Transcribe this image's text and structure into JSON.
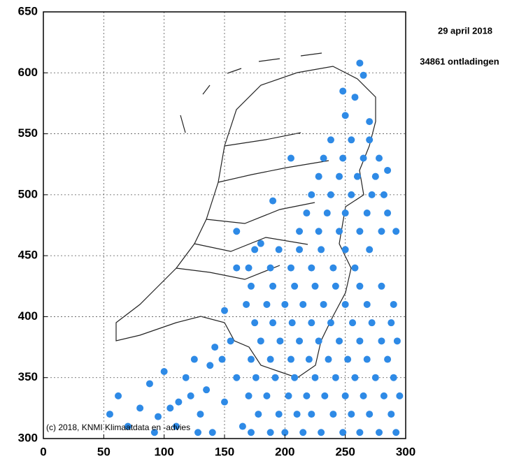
{
  "chart_data": {
    "type": "scatter",
    "title": "29 april 2018",
    "subtitle": "34861 ontladingen",
    "annotation": "(c) 2018, KNMI Klimaatdata en -advies",
    "xlim": [
      0,
      300
    ],
    "ylim": [
      300,
      650
    ],
    "xticks": [
      0,
      50,
      100,
      150,
      200,
      250,
      300
    ],
    "yticks": [
      300,
      350,
      400,
      450,
      500,
      550,
      600,
      650
    ],
    "grid": true,
    "color": "#2e8ae6",
    "x": [
      55,
      62,
      70,
      80,
      88,
      95,
      100,
      92,
      110,
      112,
      118,
      125,
      130,
      135,
      140,
      128,
      142,
      122,
      105,
      138,
      150,
      155,
      160,
      165,
      150,
      160,
      148,
      172,
      188,
      200,
      215,
      230,
      248,
      262,
      278,
      292,
      178,
      195,
      210,
      222,
      240,
      255,
      270,
      288,
      170,
      185,
      203,
      218,
      233,
      250,
      265,
      282,
      295,
      176,
      192,
      208,
      225,
      242,
      258,
      275,
      290,
      172,
      188,
      205,
      220,
      236,
      252,
      268,
      285,
      180,
      196,
      212,
      228,
      245,
      262,
      280,
      293,
      175,
      190,
      206,
      222,
      238,
      256,
      272,
      288,
      168,
      185,
      200,
      215,
      232,
      250,
      268,
      290,
      172,
      190,
      208,
      225,
      242,
      262,
      280,
      170,
      188,
      205,
      222,
      240,
      258,
      175,
      195,
      212,
      230,
      250,
      270,
      212,
      228,
      245,
      262,
      280,
      218,
      235,
      250,
      268,
      285,
      222,
      238,
      255,
      272,
      282,
      228,
      245,
      260,
      275,
      232,
      248,
      265,
      278,
      238,
      255,
      270,
      250,
      258,
      265,
      262,
      248,
      270,
      285,
      292,
      205,
      190,
      180,
      160
    ],
    "values": [
      320,
      335,
      310,
      325,
      345,
      318,
      355,
      305,
      310,
      330,
      350,
      365,
      320,
      340,
      305,
      305,
      375,
      335,
      325,
      360,
      330,
      380,
      350,
      310,
      405,
      440,
      365,
      305,
      305,
      305,
      305,
      305,
      305,
      305,
      305,
      305,
      320,
      320,
      320,
      320,
      320,
      320,
      320,
      320,
      335,
      335,
      335,
      335,
      335,
      335,
      335,
      335,
      335,
      350,
      350,
      350,
      350,
      350,
      350,
      350,
      350,
      365,
      365,
      365,
      365,
      365,
      365,
      365,
      365,
      380,
      380,
      380,
      380,
      380,
      380,
      380,
      380,
      395,
      395,
      395,
      395,
      395,
      395,
      395,
      395,
      410,
      410,
      410,
      410,
      410,
      410,
      410,
      410,
      425,
      425,
      425,
      425,
      425,
      425,
      425,
      440,
      440,
      440,
      440,
      440,
      440,
      455,
      455,
      455,
      455,
      455,
      455,
      470,
      470,
      470,
      470,
      470,
      485,
      485,
      485,
      485,
      485,
      500,
      500,
      500,
      500,
      500,
      515,
      515,
      515,
      515,
      530,
      530,
      530,
      530,
      545,
      545,
      545,
      565,
      580,
      598,
      608,
      585,
      560,
      520,
      470,
      530,
      495,
      460,
      470
    ]
  }
}
